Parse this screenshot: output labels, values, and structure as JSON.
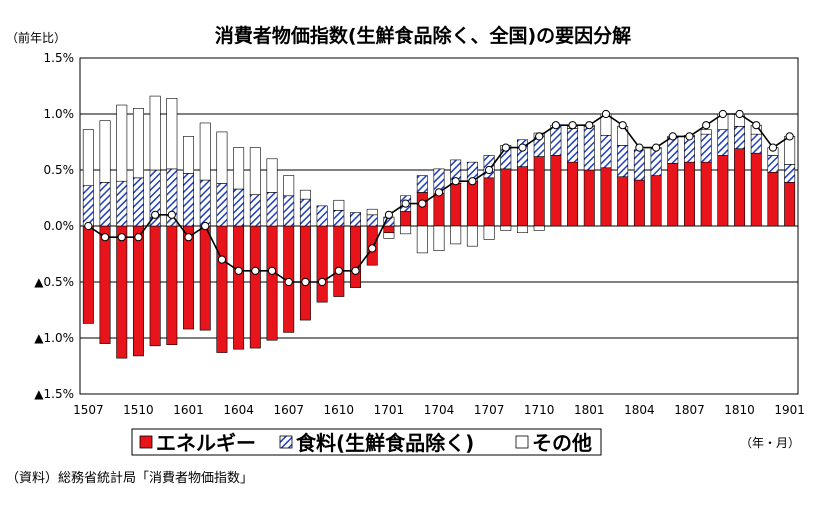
{
  "chart_data": {
    "type": "bar",
    "title": "消費者物価指数(生鮮食品除く、全国)の要因分解",
    "y_unit_label": "（前年比）",
    "x_unit_label": "（年・月）",
    "source": "（資料）総務省統計局「消費者物価指数」",
    "ylim": [
      -1.5,
      1.5
    ],
    "y_ticks": [
      {
        "value": 1.5,
        "label": "1.5%"
      },
      {
        "value": 1.0,
        "label": "1.0%"
      },
      {
        "value": 0.5,
        "label": "0.5%"
      },
      {
        "value": 0.0,
        "label": "0.0%"
      },
      {
        "value": -0.5,
        "label": "▲0.5%"
      },
      {
        "value": -1.0,
        "label": "▲1.0%"
      },
      {
        "value": -1.5,
        "label": "▲1.5%"
      }
    ],
    "x_tick_labels": [
      {
        "index": 0,
        "label": "1507"
      },
      {
        "index": 3,
        "label": "1510"
      },
      {
        "index": 6,
        "label": "1601"
      },
      {
        "index": 9,
        "label": "1604"
      },
      {
        "index": 12,
        "label": "1607"
      },
      {
        "index": 15,
        "label": "1610"
      },
      {
        "index": 18,
        "label": "1701"
      },
      {
        "index": 21,
        "label": "1704"
      },
      {
        "index": 24,
        "label": "1707"
      },
      {
        "index": 27,
        "label": "1710"
      },
      {
        "index": 30,
        "label": "1801"
      },
      {
        "index": 33,
        "label": "1804"
      },
      {
        "index": 36,
        "label": "1807"
      },
      {
        "index": 39,
        "label": "1810"
      },
      {
        "index": 42,
        "label": "1901"
      }
    ],
    "legend": [
      "エネルギー",
      "食料(生鮮食品除く)",
      "その他"
    ],
    "grid": true,
    "series": [
      {
        "name": "エネルギー",
        "values": [
          -0.87,
          -1.05,
          -1.18,
          -1.16,
          -1.07,
          -1.06,
          -0.92,
          -0.93,
          -1.13,
          -1.1,
          -1.09,
          -1.02,
          -0.95,
          -0.84,
          -0.68,
          -0.63,
          -0.55,
          -0.35,
          -0.06,
          0.13,
          0.3,
          0.29,
          0.38,
          0.4,
          0.43,
          0.51,
          0.53,
          0.62,
          0.63,
          0.57,
          0.5,
          0.52,
          0.44,
          0.41,
          0.45,
          0.56,
          0.57,
          0.57,
          0.63,
          0.69,
          0.65,
          0.48,
          0.39
        ]
      },
      {
        "name": "食料(生鮮食品除く)",
        "values": [
          0.36,
          0.39,
          0.4,
          0.43,
          0.5,
          0.51,
          0.47,
          0.41,
          0.38,
          0.33,
          0.28,
          0.3,
          0.27,
          0.24,
          0.18,
          0.14,
          0.12,
          0.1,
          0.08,
          0.14,
          0.15,
          0.22,
          0.21,
          0.17,
          0.2,
          0.21,
          0.24,
          0.21,
          0.27,
          0.3,
          0.39,
          0.29,
          0.28,
          0.27,
          0.24,
          0.23,
          0.23,
          0.25,
          0.23,
          0.2,
          0.17,
          0.15,
          0.16
        ]
      },
      {
        "name": "その他",
        "values": [
          0.5,
          0.55,
          0.68,
          0.62,
          0.66,
          0.63,
          0.33,
          0.51,
          0.46,
          0.37,
          0.42,
          0.3,
          0.18,
          0.08,
          0.0,
          0.09,
          0.0,
          0.05,
          -0.05,
          -0.07,
          -0.24,
          -0.22,
          -0.16,
          -0.18,
          -0.12,
          -0.04,
          -0.06,
          -0.04,
          0.0,
          0.02,
          0.01,
          0.19,
          0.17,
          0.0,
          0.01,
          0.01,
          0.01,
          0.04,
          0.14,
          0.11,
          0.08,
          0.07,
          0.25
        ]
      }
    ],
    "total": [
      0.0,
      -0.1,
      -0.1,
      -0.1,
      0.1,
      0.1,
      -0.1,
      0.0,
      -0.3,
      -0.4,
      -0.4,
      -0.4,
      -0.5,
      -0.5,
      -0.5,
      -0.4,
      -0.4,
      -0.2,
      0.1,
      0.2,
      0.2,
      0.3,
      0.4,
      0.4,
      0.5,
      0.7,
      0.7,
      0.8,
      0.9,
      0.9,
      0.9,
      1.0,
      0.9,
      0.7,
      0.7,
      0.8,
      0.8,
      0.9,
      1.0,
      1.0,
      0.9,
      0.7,
      0.8
    ]
  }
}
